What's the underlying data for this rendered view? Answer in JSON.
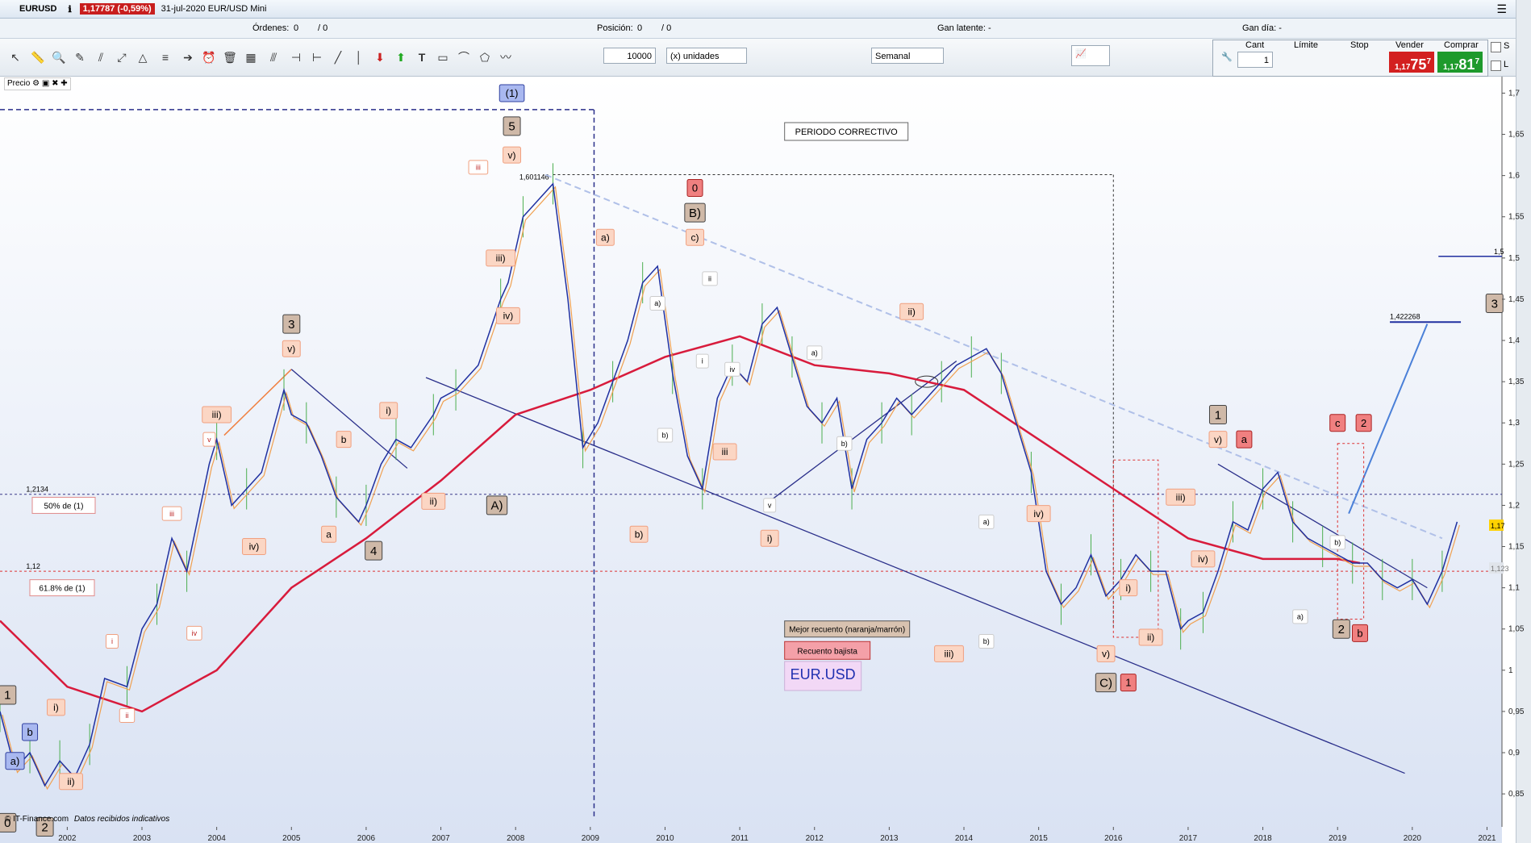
{
  "window": {
    "symbol": "EURUSD",
    "price_badge": "1,17787 (-0,59%)",
    "title": "31-jul-2020 EUR/USD Mini"
  },
  "info": {
    "ordenes_label": "Órdenes:",
    "ordenes_value": "0",
    "ordenes_sep": "/ 0",
    "posicion_label": "Posición:",
    "posicion_value": "0",
    "posicion_sep": "/ 0",
    "gan_latente": "Gan latente: -",
    "gan_dia": "Gan día: -"
  },
  "toolbar": {
    "quantity": "10000",
    "units": "(x) unidades",
    "timeframe": "Semanal"
  },
  "trade": {
    "cant_label": "Cant",
    "cant_value": "1",
    "limite_label": "Límite",
    "stop_label": "Stop",
    "vender_label": "Vender",
    "comprar_label": "Comprar",
    "vender_price_small": "1,17",
    "vender_price_big": "75",
    "vender_sup": "7",
    "comprar_price_small": "1,17",
    "comprar_price_big": "81",
    "comprar_sup": "7",
    "s_label": "S",
    "l_label": "L"
  },
  "panel": {
    "precio_label": "Precio"
  },
  "footer": {
    "source": "© IT-Finance.com",
    "note": "Datos recibidos indicativos"
  },
  "colors": {
    "bg_top": "#ffffff",
    "bg_bottom": "#d9e2f3",
    "ma_red": "#d81b3c",
    "ma_orange": "#f0a050",
    "ma_blue": "#2030a0",
    "trend_navy": "#2a2f8a",
    "candles": "#4caf50"
  },
  "chart_data": {
    "type": "line",
    "instrument": "EUR.USD",
    "timeframe": "weekly",
    "x_ticks": [
      "2002",
      "2003",
      "2004",
      "2005",
      "2006",
      "2007",
      "2008",
      "2009",
      "2010",
      "2011",
      "2012",
      "2013",
      "2014",
      "2015",
      "2016",
      "2017",
      "2018",
      "2019",
      "2020",
      "2021"
    ],
    "y_ticks": [
      "1,7",
      "1,65",
      "1,6",
      "1,55",
      "1,5",
      "1,45",
      "1,4",
      "1,35",
      "1,3",
      "1,25",
      "1,2",
      "1,15",
      "1,1",
      "1,05",
      "1",
      "0,95",
      "0,9",
      "0,85"
    ],
    "ylim": [
      0.81,
      1.72
    ],
    "xlim": [
      2001.1,
      2021.2
    ],
    "series": [
      {
        "values_year": [
          2001.1,
          2001.3,
          2001.5,
          2001.7,
          2001.9,
          2002.1,
          2002.3,
          2002.5,
          2002.8,
          2003.0,
          2003.2,
          2003.4,
          2003.6,
          2003.9,
          2004.0,
          2004.2,
          2004.4,
          2004.6,
          2004.9,
          2005.0,
          2005.2,
          2005.4,
          2005.6,
          2005.9,
          2006.0,
          2006.2,
          2006.4,
          2006.6,
          2006.9,
          2007.0,
          2007.2,
          2007.5,
          2007.8,
          2007.9,
          2008.1,
          2008.3,
          2008.5,
          2008.7,
          2008.9,
          2009.1,
          2009.3,
          2009.5,
          2009.7,
          2009.9,
          2010.1,
          2010.3,
          2010.5,
          2010.7,
          2010.9,
          2011.1,
          2011.3,
          2011.5,
          2011.7,
          2011.9,
          2012.1,
          2012.3,
          2012.5,
          2012.7,
          2012.9,
          2013.1,
          2013.3,
          2013.5,
          2013.7,
          2013.9,
          2014.1,
          2014.3,
          2014.5,
          2014.7,
          2014.9,
          2015.1,
          2015.3,
          2015.5,
          2015.7,
          2015.9,
          2016.1,
          2016.3,
          2016.5,
          2016.7,
          2016.9,
          2017.0,
          2017.2,
          2017.4,
          2017.6,
          2017.8,
          2018.0,
          2018.2,
          2018.4,
          2018.6,
          2018.8,
          2019.0,
          2019.2,
          2019.4,
          2019.6,
          2019.8,
          2020.0,
          2020.2,
          2020.4,
          2020.6
        ],
        "values": [
          0.95,
          0.88,
          0.9,
          0.86,
          0.89,
          0.87,
          0.91,
          0.99,
          0.98,
          1.05,
          1.08,
          1.16,
          1.12,
          1.25,
          1.28,
          1.2,
          1.22,
          1.24,
          1.34,
          1.31,
          1.3,
          1.26,
          1.21,
          1.18,
          1.2,
          1.25,
          1.28,
          1.27,
          1.31,
          1.33,
          1.34,
          1.37,
          1.45,
          1.47,
          1.55,
          1.57,
          1.59,
          1.45,
          1.27,
          1.3,
          1.35,
          1.4,
          1.47,
          1.49,
          1.36,
          1.26,
          1.22,
          1.33,
          1.37,
          1.35,
          1.42,
          1.44,
          1.38,
          1.32,
          1.3,
          1.33,
          1.22,
          1.28,
          1.3,
          1.33,
          1.31,
          1.33,
          1.35,
          1.37,
          1.38,
          1.39,
          1.36,
          1.3,
          1.24,
          1.12,
          1.08,
          1.1,
          1.14,
          1.09,
          1.11,
          1.14,
          1.12,
          1.12,
          1.05,
          1.06,
          1.07,
          1.12,
          1.18,
          1.17,
          1.22,
          1.24,
          1.18,
          1.16,
          1.15,
          1.14,
          1.13,
          1.13,
          1.11,
          1.1,
          1.11,
          1.08,
          1.12,
          1.18
        ]
      }
    ],
    "horizontal_levels": [
      {
        "value": 1.2134,
        "label": "1,2134"
      },
      {
        "value": 1.12,
        "label": "1,12"
      },
      {
        "value": 1.601146,
        "label": "1,601146"
      },
      {
        "value": 1.422268,
        "label": "1,422268"
      }
    ],
    "right_badges": [
      {
        "value": "1,17",
        "color": "#ffd200"
      },
      {
        "value": "1,123",
        "color": "#e0e4ea"
      }
    ],
    "right_edge_label": "1,5",
    "text_boxes": [
      "50% de (1)",
      "61.8% de (1)",
      "PERIODO    CORRECTIVO",
      "Mejor recuento (naranja/marrón)",
      "Recuento bajista",
      "EUR.USD"
    ],
    "wave_labels": [
      {
        "t": "1",
        "x": 2001.2,
        "y": 0.97,
        "s": "tan"
      },
      {
        "t": "0",
        "x": 2001.2,
        "y": 0.815,
        "s": "tan"
      },
      {
        "t": "2",
        "x": 2001.7,
        "y": 0.81,
        "s": "tan"
      },
      {
        "t": "a)",
        "x": 2001.3,
        "y": 0.89,
        "s": "blue"
      },
      {
        "t": "b",
        "x": 2001.5,
        "y": 0.925,
        "s": "blue"
      },
      {
        "t": "i)",
        "x": 2001.85,
        "y": 0.955,
        "s": "or"
      },
      {
        "t": "ii)",
        "x": 2002.05,
        "y": 0.865,
        "s": "or"
      },
      {
        "t": "ii",
        "x": 2002.8,
        "y": 0.945,
        "s": "ors"
      },
      {
        "t": "i",
        "x": 2002.6,
        "y": 1.035,
        "s": "ors"
      },
      {
        "t": "iii",
        "x": 2003.4,
        "y": 1.19,
        "s": "ors"
      },
      {
        "t": "iv",
        "x": 2003.7,
        "y": 1.045,
        "s": "ors"
      },
      {
        "t": "v",
        "x": 2003.9,
        "y": 1.28,
        "s": "ors"
      },
      {
        "t": "iii)",
        "x": 2004.0,
        "y": 1.31,
        "s": "or"
      },
      {
        "t": "iv)",
        "x": 2004.5,
        "y": 1.15,
        "s": "or"
      },
      {
        "t": "3",
        "x": 2005.0,
        "y": 1.42,
        "s": "tan"
      },
      {
        "t": "v)",
        "x": 2005.0,
        "y": 1.39,
        "s": "or"
      },
      {
        "t": "b",
        "x": 2005.7,
        "y": 1.28,
        "s": "or"
      },
      {
        "t": "a",
        "x": 2005.5,
        "y": 1.165,
        "s": "or"
      },
      {
        "t": "4",
        "x": 2006.1,
        "y": 1.145,
        "s": "tan"
      },
      {
        "t": "i)",
        "x": 2006.3,
        "y": 1.315,
        "s": "or"
      },
      {
        "t": "ii)",
        "x": 2006.9,
        "y": 1.205,
        "s": "or"
      },
      {
        "t": "iii)",
        "x": 2007.8,
        "y": 1.5,
        "s": "or"
      },
      {
        "t": "iv)",
        "x": 2007.9,
        "y": 1.43,
        "s": "or"
      },
      {
        "t": "iii",
        "x": 2007.5,
        "y": 1.61,
        "s": "ors"
      },
      {
        "t": "v)",
        "x": 2007.95,
        "y": 1.625,
        "s": "or"
      },
      {
        "t": "5",
        "x": 2007.95,
        "y": 1.66,
        "s": "tan"
      },
      {
        "t": "(1)",
        "x": 2007.95,
        "y": 1.7,
        "s": "blue"
      },
      {
        "t": "A)",
        "x": 2007.75,
        "y": 1.2,
        "s": "tan"
      },
      {
        "t": "a)",
        "x": 2009.2,
        "y": 1.525,
        "s": "or"
      },
      {
        "t": "b)",
        "x": 2009.65,
        "y": 1.165,
        "s": "or"
      },
      {
        "t": "0",
        "x": 2010.4,
        "y": 1.585,
        "s": "red"
      },
      {
        "t": "B)",
        "x": 2010.4,
        "y": 1.555,
        "s": "tan"
      },
      {
        "t": "c)",
        "x": 2010.4,
        "y": 1.525,
        "s": "or"
      },
      {
        "t": "a)",
        "x": 2009.9,
        "y": 1.445,
        "s": "orl"
      },
      {
        "t": "b)",
        "x": 2010.0,
        "y": 1.285,
        "s": "orl"
      },
      {
        "t": "ii",
        "x": 2010.6,
        "y": 1.475,
        "s": "orl"
      },
      {
        "t": "i",
        "x": 2010.5,
        "y": 1.375,
        "s": "orl"
      },
      {
        "t": "iv",
        "x": 2010.9,
        "y": 1.365,
        "s": "orl"
      },
      {
        "t": "iii",
        "x": 2010.8,
        "y": 1.265,
        "s": "or"
      },
      {
        "t": "v",
        "x": 2011.4,
        "y": 1.2,
        "s": "orl"
      },
      {
        "t": "i)",
        "x": 2011.4,
        "y": 1.16,
        "s": "or"
      },
      {
        "t": "a)",
        "x": 2012.0,
        "y": 1.385,
        "s": "orl"
      },
      {
        "t": "b)",
        "x": 2012.4,
        "y": 1.275,
        "s": "orl"
      },
      {
        "t": "ii)",
        "x": 2013.3,
        "y": 1.435,
        "s": "or"
      },
      {
        "t": "iii)",
        "x": 2013.8,
        "y": 1.02,
        "s": "or"
      },
      {
        "t": "a)",
        "x": 2014.3,
        "y": 1.18,
        "s": "orl"
      },
      {
        "t": "b)",
        "x": 2014.3,
        "y": 1.035,
        "s": "orl"
      },
      {
        "t": "iv)",
        "x": 2015.0,
        "y": 1.19,
        "s": "or"
      },
      {
        "t": "v)",
        "x": 2015.9,
        "y": 1.02,
        "s": "or"
      },
      {
        "t": "C)",
        "x": 2015.9,
        "y": 0.985,
        "s": "tan"
      },
      {
        "t": "1",
        "x": 2016.2,
        "y": 0.985,
        "s": "red"
      },
      {
        "t": "i)",
        "x": 2016.2,
        "y": 1.1,
        "s": "or"
      },
      {
        "t": "ii)",
        "x": 2016.5,
        "y": 1.04,
        "s": "or"
      },
      {
        "t": "iii)",
        "x": 2016.9,
        "y": 1.21,
        "s": "or"
      },
      {
        "t": "iv)",
        "x": 2017.2,
        "y": 1.135,
        "s": "or"
      },
      {
        "t": "1",
        "x": 2017.4,
        "y": 1.31,
        "s": "tan"
      },
      {
        "t": "v)",
        "x": 2017.4,
        "y": 1.28,
        "s": "or"
      },
      {
        "t": "a",
        "x": 2017.75,
        "y": 1.28,
        "s": "red"
      },
      {
        "t": "c",
        "x": 2019.0,
        "y": 1.3,
        "s": "red"
      },
      {
        "t": "2",
        "x": 2019.35,
        "y": 1.3,
        "s": "red"
      },
      {
        "t": "b)",
        "x": 2019.0,
        "y": 1.155,
        "s": "orl"
      },
      {
        "t": "a)",
        "x": 2018.5,
        "y": 1.065,
        "s": "orl"
      },
      {
        "t": "2",
        "x": 2019.05,
        "y": 1.05,
        "s": "tan"
      },
      {
        "t": "b",
        "x": 2019.3,
        "y": 1.045,
        "s": "red"
      },
      {
        "t": "3",
        "x": 2021.1,
        "y": 1.445,
        "s": "tan"
      }
    ]
  }
}
